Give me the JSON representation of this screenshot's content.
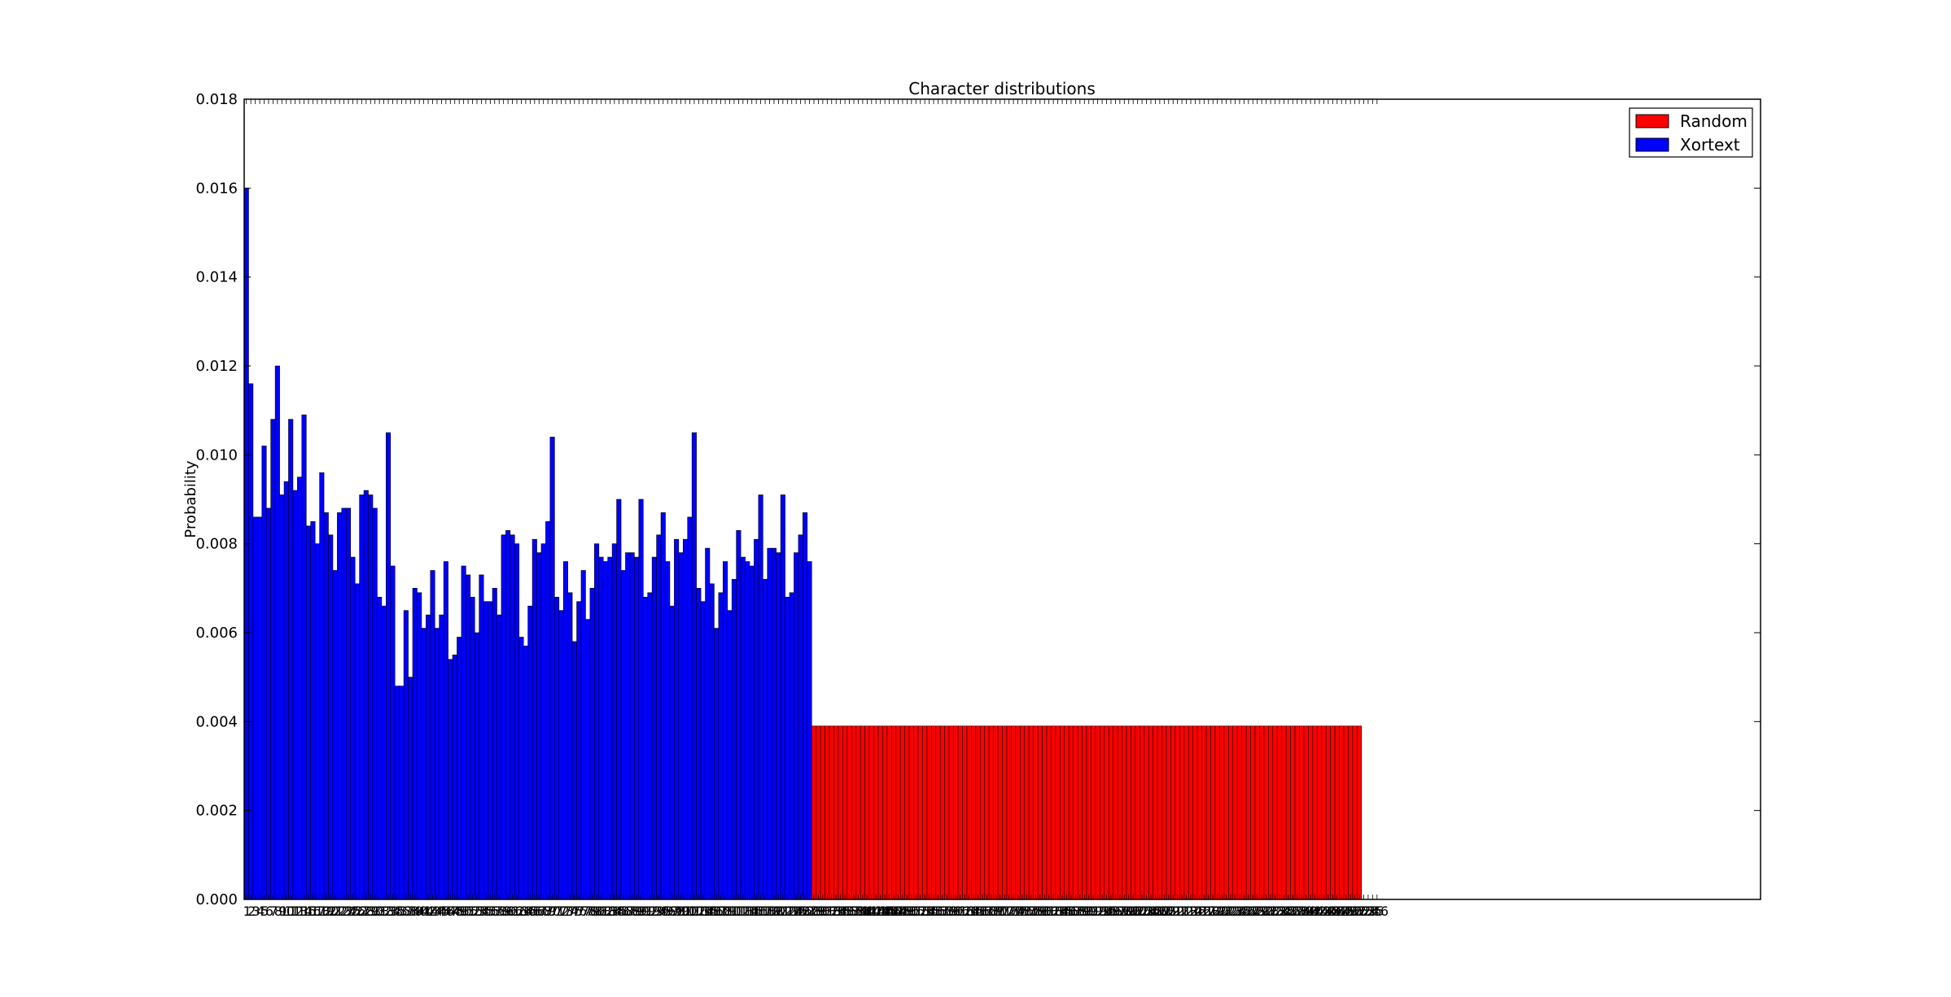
{
  "chart_data": {
    "type": "bar",
    "title": "Character distributions",
    "xlabel": "",
    "ylabel": "Probability",
    "ylim": [
      0,
      0.018
    ],
    "yticks": [
      "0.000",
      "0.002",
      "0.004",
      "0.006",
      "0.008",
      "0.010",
      "0.012",
      "0.014",
      "0.016",
      "0.018"
    ],
    "xlim": [
      0,
      342
    ],
    "x_tick_values": [
      1,
      2,
      3,
      4,
      5,
      6,
      7,
      8,
      9,
      10,
      11,
      12,
      13,
      14,
      15,
      16,
      17,
      18,
      19,
      20,
      21,
      22,
      23,
      24,
      25,
      26,
      27,
      28,
      29,
      30,
      31,
      32,
      33,
      34,
      35,
      36,
      37,
      38,
      39,
      40,
      41,
      42,
      43,
      44,
      45,
      46,
      47,
      48,
      49,
      50,
      51,
      52,
      53,
      54,
      55,
      56,
      57,
      58,
      59,
      60,
      61,
      62,
      63,
      64,
      65,
      66,
      67,
      68,
      69,
      70,
      71,
      72,
      73,
      74,
      75,
      76,
      77,
      78,
      79,
      80,
      81,
      82,
      83,
      84,
      85,
      86,
      87,
      88,
      89,
      90,
      91,
      92,
      93,
      94,
      95,
      96,
      97,
      98,
      99,
      100,
      101,
      102,
      103,
      104,
      105,
      106,
      107,
      108,
      109,
      110,
      111,
      112,
      113,
      114,
      115,
      116,
      117,
      118,
      119,
      120,
      121,
      122,
      123,
      124,
      125,
      126,
      127,
      128,
      129,
      130,
      131,
      132,
      133,
      134,
      135,
      136,
      137,
      138,
      139,
      140,
      141,
      142,
      143,
      144,
      145,
      146,
      147,
      148,
      149,
      150,
      151,
      152,
      153,
      154,
      155,
      156,
      157,
      158,
      159,
      160,
      161,
      162,
      163,
      164,
      165,
      166,
      167,
      168,
      169,
      170,
      171,
      172,
      173,
      174,
      175,
      176,
      177,
      178,
      179,
      180,
      181,
      182,
      183,
      184,
      185,
      186,
      187,
      188,
      189,
      190,
      191,
      192,
      193,
      194,
      195,
      196,
      197,
      198,
      199,
      200,
      201,
      202,
      203,
      204,
      205,
      206,
      207,
      208,
      209,
      210,
      211,
      212,
      213,
      214,
      215,
      216,
      217,
      218,
      219,
      220,
      221,
      222,
      223,
      224,
      225,
      226,
      227,
      228,
      229,
      230,
      231,
      232,
      233,
      234,
      235,
      236,
      237,
      238,
      239,
      240,
      241,
      242,
      243,
      244,
      245,
      246,
      247,
      248,
      249,
      250,
      251,
      252,
      253,
      254,
      255,
      256
    ],
    "legend": {
      "placement": "top-right"
    },
    "series": [
      {
        "name": "Random",
        "color": "#ff0000",
        "x_start": 1,
        "count": 256,
        "values": [
          0.0039,
          0.0039,
          0.0039,
          0.0039,
          0.0039,
          0.0039,
          0.0039,
          0.0039,
          0.0039,
          0.0039,
          0.0039,
          0.0039,
          0.0039,
          0.0039,
          0.0039,
          0.0039,
          0.0039,
          0.0039,
          0.0039,
          0.0039,
          0.0039,
          0.0039,
          0.0039,
          0.0039,
          0.0039,
          0.0039,
          0.0039,
          0.0039,
          0.0039,
          0.0039,
          0.0039,
          0.0039,
          0.0039,
          0.0039,
          0.0039,
          0.0039,
          0.0039,
          0.0039,
          0.0039,
          0.0039,
          0.0039,
          0.0039,
          0.0039,
          0.0039,
          0.0039,
          0.0039,
          0.0039,
          0.0039,
          0.0039,
          0.0039,
          0.0039,
          0.0039,
          0.0039,
          0.0039,
          0.0039,
          0.0039,
          0.0039,
          0.0039,
          0.0039,
          0.0039,
          0.0039,
          0.0039,
          0.0039,
          0.0039,
          0.0039,
          0.0039,
          0.0039,
          0.0039,
          0.0039,
          0.0039,
          0.0039,
          0.0039,
          0.0039,
          0.0039,
          0.0039,
          0.0039,
          0.0039,
          0.0039,
          0.0039,
          0.0039,
          0.0039,
          0.0039,
          0.0039,
          0.0039,
          0.0039,
          0.0039,
          0.0039,
          0.0039,
          0.0039,
          0.0039,
          0.0039,
          0.0039,
          0.0039,
          0.0039,
          0.0039,
          0.0039,
          0.0039,
          0.0039,
          0.0039,
          0.0039,
          0.0039,
          0.0039,
          0.0039,
          0.0039,
          0.0039,
          0.0039,
          0.0039,
          0.0039,
          0.0039,
          0.0039,
          0.0039,
          0.0039,
          0.0039,
          0.0039,
          0.0039,
          0.0039,
          0.0039,
          0.0039,
          0.0039,
          0.0039,
          0.0039,
          0.0039,
          0.0039,
          0.0039,
          0.0039,
          0.0039,
          0.0039,
          0.0039,
          0.0039,
          0.0039,
          0.0039,
          0.0039,
          0.0039,
          0.0039,
          0.0039,
          0.0039,
          0.0039,
          0.0039,
          0.0039,
          0.0039,
          0.0039,
          0.0039,
          0.0039,
          0.0039,
          0.0039,
          0.0039,
          0.0039,
          0.0039,
          0.0039,
          0.0039,
          0.0039,
          0.0039,
          0.0039,
          0.0039,
          0.0039,
          0.0039,
          0.0039,
          0.0039,
          0.0039,
          0.0039,
          0.0039,
          0.0039,
          0.0039,
          0.0039,
          0.0039,
          0.0039,
          0.0039,
          0.0039,
          0.0039,
          0.0039,
          0.0039,
          0.0039,
          0.0039,
          0.0039,
          0.0039,
          0.0039,
          0.0039,
          0.0039,
          0.0039,
          0.0039,
          0.0039,
          0.0039,
          0.0039,
          0.0039,
          0.0039,
          0.0039,
          0.0039,
          0.0039,
          0.0039,
          0.0039,
          0.0039,
          0.0039,
          0.0039,
          0.0039,
          0.0039,
          0.0039,
          0.0039,
          0.0039,
          0.0039,
          0.0039,
          0.0039,
          0.0039,
          0.0039,
          0.0039,
          0.0039,
          0.0039,
          0.0039,
          0.0039,
          0.0039,
          0.0039,
          0.0039,
          0.0039,
          0.0039,
          0.0039,
          0.0039,
          0.0039,
          0.0039,
          0.0039,
          0.0039,
          0.0039,
          0.0039,
          0.0039,
          0.0039,
          0.0039,
          0.0039,
          0.0039,
          0.0039,
          0.0039,
          0.0039,
          0.0039,
          0.0039,
          0.0039,
          0.0039,
          0.0039,
          0.0039,
          0.0039,
          0.0039,
          0.0039,
          0.0039,
          0.0039,
          0.0039,
          0.0039,
          0.0039,
          0.0039,
          0.0039,
          0.0039,
          0.0039,
          0.0039,
          0.0039,
          0.0039,
          0.0039,
          0.0039
        ]
      },
      {
        "name": "Xortext",
        "color": "#0000ff",
        "x_start": 1,
        "values": [
          0.016,
          0.0116,
          0.0086,
          0.0086,
          0.0102,
          0.0088,
          0.0108,
          0.012,
          0.0091,
          0.0094,
          0.0108,
          0.0092,
          0.0095,
          0.0109,
          0.0084,
          0.0085,
          0.008,
          0.0096,
          0.0087,
          0.0082,
          0.0074,
          0.0087,
          0.0088,
          0.0088,
          0.0077,
          0.0071,
          0.0091,
          0.0092,
          0.0091,
          0.0088,
          0.0068,
          0.0066,
          0.0105,
          0.0075,
          0.0048,
          0.0048,
          0.0065,
          0.005,
          0.007,
          0.0069,
          0.0061,
          0.0064,
          0.0074,
          0.0061,
          0.0064,
          0.0076,
          0.0054,
          0.0055,
          0.0059,
          0.0075,
          0.0073,
          0.0068,
          0.006,
          0.0073,
          0.0067,
          0.0067,
          0.007,
          0.0064,
          0.0082,
          0.0083,
          0.0082,
          0.008,
          0.0059,
          0.0057,
          0.0066,
          0.0081,
          0.0078,
          0.008,
          0.0085,
          0.0104,
          0.0068,
          0.0065,
          0.0076,
          0.0069,
          0.0058,
          0.0067,
          0.0074,
          0.0063,
          0.007,
          0.008,
          0.0077,
          0.0076,
          0.0077,
          0.008,
          0.009,
          0.0074,
          0.0078,
          0.0078,
          0.0077,
          0.009,
          0.0068,
          0.0069,
          0.0077,
          0.0082,
          0.0087,
          0.0076,
          0.0066,
          0.0081,
          0.0078,
          0.0081,
          0.0086,
          0.0105,
          0.007,
          0.0067,
          0.0079,
          0.0071,
          0.0061,
          0.0069,
          0.0076,
          0.0065,
          0.0072,
          0.0083,
          0.0077,
          0.0076,
          0.0075,
          0.0081,
          0.0091,
          0.0072,
          0.0079,
          0.0079,
          0.0078,
          0.0091,
          0.0068,
          0.0069,
          0.0078,
          0.0082,
          0.0087,
          0.0076
        ]
      }
    ]
  }
}
